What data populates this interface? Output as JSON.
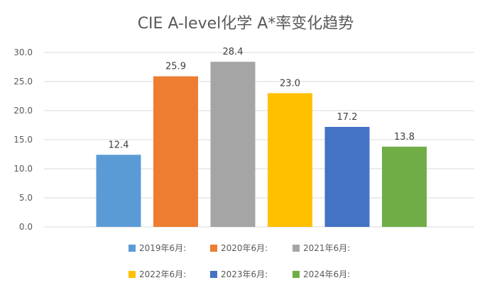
{
  "chart_data": {
    "type": "bar",
    "title": "CIE A-level化学 A*率变化趋势",
    "xlabel": "",
    "ylabel": "",
    "ylim": [
      0,
      30
    ],
    "yticks": [
      "0.0",
      "5.0",
      "10.0",
      "15.0",
      "20.0",
      "25.0",
      "30.0"
    ],
    "grid": true,
    "legend_position": "bottom",
    "series": [
      {
        "name": "2019年6月:",
        "value": 12.4,
        "label": "12.4",
        "color": "#5b9bd5"
      },
      {
        "name": "2020年6月:",
        "value": 25.9,
        "label": "25.9",
        "color": "#ed7d31"
      },
      {
        "name": "2021年6月:",
        "value": 28.4,
        "label": "28.4",
        "color": "#a5a5a5"
      },
      {
        "name": "2022年6月:",
        "value": 23.0,
        "label": "23.0",
        "color": "#ffc000"
      },
      {
        "name": "2023年6月:",
        "value": 17.2,
        "label": "17.2",
        "color": "#4472c4"
      },
      {
        "name": "2024年6月:",
        "value": 13.8,
        "label": "13.8",
        "color": "#70ad47"
      }
    ]
  }
}
